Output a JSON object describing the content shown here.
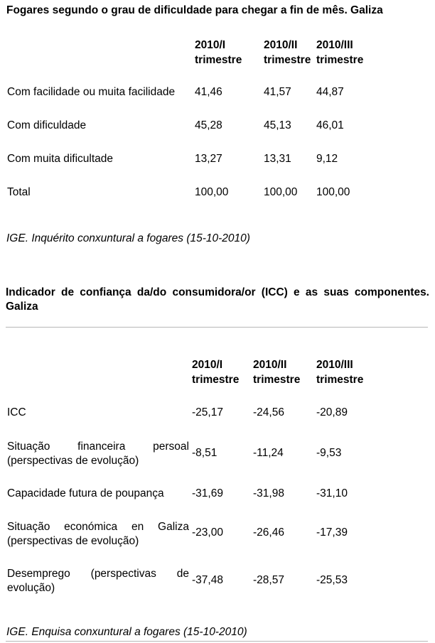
{
  "table1": {
    "title": "Fogares segundo o grau de dificuldade para chegar a fin de mês. Galiza",
    "columns": [
      {
        "line1": "2010/I",
        "line2": "trimestre"
      },
      {
        "line1": "2010/II",
        "line2": "trimestre"
      },
      {
        "line1": "2010/III",
        "line2": "trimestre"
      }
    ],
    "rows": [
      {
        "label": "Com facilidade ou muita facilidade",
        "values": [
          "41,46",
          "41,57",
          "44,87"
        ]
      },
      {
        "label": "Com dificuldade",
        "values": [
          "45,28",
          "45,13",
          "46,01"
        ]
      },
      {
        "label": "Com muita dificultade",
        "values": [
          "13,27",
          "13,31",
          "9,12"
        ]
      },
      {
        "label": "Total",
        "values": [
          "100,00",
          "100,00",
          "100,00"
        ]
      }
    ],
    "source": "IGE. Inquérito conxuntural a fogares (15-10-2010)"
  },
  "table2": {
    "title": "Indicador de confiança da/do consumidora/or (ICC) e as suas componentes. Galiza",
    "columns": [
      {
        "line1": "2010/I",
        "line2": "trimestre"
      },
      {
        "line1": "2010/II",
        "line2": "trimestre"
      },
      {
        "line1": "2010/III",
        "line2": "trimestre"
      }
    ],
    "rows": [
      {
        "label": "ICC",
        "values": [
          "-25,17",
          "-24,56",
          "-20,89"
        ]
      },
      {
        "label": "Situação financeira persoal (perspectivas de evolução)",
        "values": [
          "-8,51",
          "-11,24",
          "-9,53"
        ]
      },
      {
        "label": "Capacidade futura de poupança",
        "values": [
          "-31,69",
          "-31,98",
          "-31,10"
        ]
      },
      {
        "label": "Situação económica en Galiza (perspectivas de evolução)",
        "values": [
          "-23,00",
          "-26,46",
          "-17,39"
        ]
      },
      {
        "label": "Desemprego (perspectivas de evolução)",
        "values": [
          "-37,48",
          "-28,57",
          "-25,53"
        ]
      }
    ],
    "source": "IGE. Enquisa conxuntural a fogares (15-10-2010)"
  }
}
